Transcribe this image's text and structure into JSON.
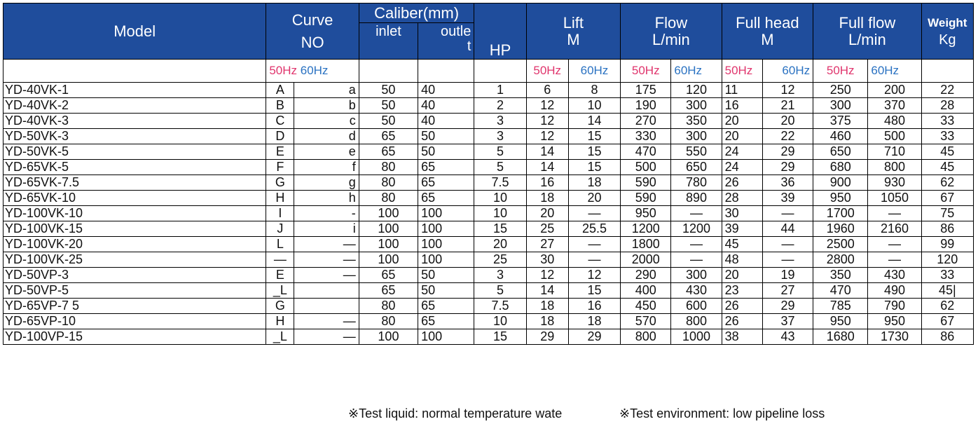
{
  "header": {
    "model": "Model",
    "curve_line1": "Curve",
    "curve_line2": "NO",
    "caliber": "Caliber(mm)",
    "inlet": "inlet",
    "outlet_line1": "outle",
    "outlet_line2": "t",
    "hp": "HP",
    "lift_line1": "Lift",
    "lift_line2": "M",
    "flow_line1": "Flow",
    "flow_line2": "L/min",
    "fullhead_line1": "Full head",
    "fullhead_line2": "M",
    "fullflow_line1": "Full flow",
    "fullflow_line2": "L/min",
    "weight_line1": "Weight",
    "weight_line2": "Kg"
  },
  "hz": {
    "f50": "50Hz",
    "f60": "60Hz"
  },
  "colors": {
    "header_bg": "#1f4d9c",
    "hz50": "#e0356d",
    "hz60": "#2a72c2"
  },
  "rows": [
    {
      "model": "YD-40VK-1",
      "c50": "A",
      "c60": "a",
      "inlet": "50",
      "outlet": "40",
      "hp": "1",
      "lift50": "6",
      "lift60": "8",
      "flow50": "175",
      "flow60": "120",
      "head50": "11",
      "head60": "12",
      "ff50": "250",
      "ff60": "200",
      "kg": "22"
    },
    {
      "model": "YD-40VK-2",
      "c50": "B",
      "c60": "b",
      "inlet": "50",
      "outlet": "40",
      "hp": "2",
      "lift50": "12",
      "lift60": "10",
      "flow50": "190",
      "flow60": "300",
      "head50": "16",
      "head60": "21",
      "ff50": "300",
      "ff60": "370",
      "kg": "28"
    },
    {
      "model": "YD-40VK-3",
      "c50": "C",
      "c60": "c",
      "inlet": "50",
      "outlet": "40",
      "hp": "3",
      "lift50": "12",
      "lift60": "14",
      "flow50": "270",
      "flow60": "350",
      "head50": "20",
      "head60": "20",
      "ff50": "375",
      "ff60": "480",
      "kg": "33"
    },
    {
      "model": "YD-50VK-3",
      "c50": "D",
      "c60": "d",
      "inlet": "65",
      "outlet": "50",
      "hp": "3",
      "lift50": "12",
      "lift60": "15",
      "flow50": "330",
      "flow60": "300",
      "head50": "20",
      "head60": "22",
      "ff50": "460",
      "ff60": "500",
      "kg": "33"
    },
    {
      "model": "YD-50VK-5",
      "c50": "E",
      "c60": "e",
      "inlet": "65",
      "outlet": "50",
      "hp": "5",
      "lift50": "14",
      "lift60": "15",
      "flow50": "470",
      "flow60": "550",
      "head50": "24",
      "head60": "29",
      "ff50": "650",
      "ff60": "710",
      "kg": "45"
    },
    {
      "model": "YD-65VK-5",
      "c50": "F",
      "c60": "f",
      "inlet": "80",
      "outlet": "65",
      "hp": "5",
      "lift50": "14",
      "lift60": "15",
      "flow50": "500",
      "flow60": "650",
      "head50": "24",
      "head60": "29",
      "ff50": "680",
      "ff60": "800",
      "kg": "45"
    },
    {
      "model": "YD-65VK-7.5",
      "c50": "G",
      "c60": "g",
      "inlet": "80",
      "outlet": "65",
      "hp": "7.5",
      "lift50": "16",
      "lift60": "18",
      "flow50": "590",
      "flow60": "780",
      "head50": "26",
      "head60": "36",
      "ff50": "900",
      "ff60": "930",
      "kg": "62"
    },
    {
      "model": "YD-65VK-10",
      "c50": "H",
      "c60": "h",
      "inlet": "80",
      "outlet": "65",
      "hp": "10",
      "lift50": "18",
      "lift60": "20",
      "flow50": "590",
      "flow60": "890",
      "head50": "28",
      "head60": "39",
      "ff50": "950",
      "ff60": "1050",
      "kg": "67"
    },
    {
      "model": "YD-100VK-10",
      "c50": "I",
      "c60": "-",
      "inlet": "100",
      "outlet": "100",
      "hp": "10",
      "lift50": "20",
      "lift60": "—",
      "flow50": "950",
      "flow60": "—",
      "head50": "30",
      "head60": "—",
      "ff50": "1700",
      "ff60": "—",
      "kg": "75"
    },
    {
      "model": "YD-100VK-15",
      "c50": "J",
      "c60": "i",
      "inlet": "100",
      "outlet": "100",
      "hp": "15",
      "lift50": "25",
      "lift60": "25.5",
      "flow50": "1200",
      "flow60": "1200",
      "head50": "39",
      "head60": "44",
      "ff50": "1960",
      "ff60": "2160",
      "kg": "86"
    },
    {
      "model": "YD-100VK-20",
      "c50": "L",
      "c60": "—",
      "inlet": "100",
      "outlet": "100",
      "hp": "20",
      "lift50": "27",
      "lift60": "—",
      "flow50": "1800",
      "flow60": "—",
      "head50": "45",
      "head60": "—",
      "ff50": "2500",
      "ff60": "—",
      "kg": "99"
    },
    {
      "model": "YD-100VK-25",
      "c50": "—",
      "c60": "—",
      "inlet": "100",
      "outlet": "100",
      "hp": "25",
      "lift50": "30",
      "lift60": "—",
      "flow50": "2000",
      "flow60": "—",
      "head50": "48",
      "head60": "—",
      "ff50": "2800",
      "ff60": "—",
      "kg": "120"
    },
    {
      "model": "YD-50VP-3",
      "c50": "E",
      "c60": "—",
      "inlet": "65",
      "outlet": "50",
      "hp": "3",
      "lift50": "12",
      "lift60": "12",
      "flow50": "290",
      "flow60": "300",
      "head50": "20",
      "head60": "19",
      "ff50": "350",
      "ff60": "430",
      "kg": "33"
    },
    {
      "model": "YD-50VP-5",
      "c50": "_L",
      "c60": "",
      "inlet": "65",
      "outlet": "50",
      "hp": "5",
      "lift50": "14",
      "lift60": "15",
      "flow50": "400",
      "flow60": "430",
      "head50": "23",
      "head60": "27",
      "ff50": "470",
      "ff60": "490",
      "kg": "45|"
    },
    {
      "model": "YD-65VP-7 5",
      "c50": "G",
      "c60": "",
      "inlet": "80",
      "outlet": "65",
      "hp": "7.5",
      "lift50": "18",
      "lift60": "16",
      "flow50": "450",
      "flow60": "600",
      "head50": "26",
      "head60": "29",
      "ff50": "785",
      "ff60": "790",
      "kg": "62"
    },
    {
      "model": "YD-65VP-10",
      "c50": "H",
      "c60": "—",
      "inlet": "80",
      "outlet": "65",
      "hp": "10",
      "lift50": "18",
      "lift60": "18",
      "flow50": "570",
      "flow60": "800",
      "head50": "26",
      "head60": "37",
      "ff50": "950",
      "ff60": "950",
      "kg": "67"
    },
    {
      "model": "YD-100VP-15",
      "c50": "_L",
      "c60": "—",
      "inlet": "100",
      "outlet": "100",
      "hp": "15",
      "lift50": "29",
      "lift60": "29",
      "flow50": "800",
      "flow60": "1000",
      "head50": "38",
      "head60": "43",
      "ff50": "1680",
      "ff60": "1730",
      "kg": "86"
    }
  ],
  "footnotes": {
    "liquid": "※Test liquid: normal temperature wate",
    "environment": "※Test environment: low pipeline loss"
  }
}
